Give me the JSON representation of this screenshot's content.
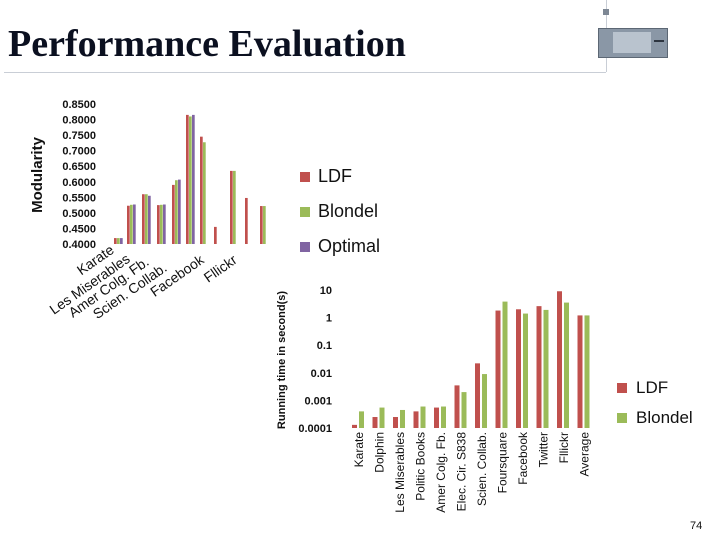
{
  "slide": {
    "title": "Performance Evaluation",
    "page_number": "74",
    "logo_icon": "optimal-network-science-logo"
  },
  "colors": {
    "LDF": "#c0504d",
    "Blondel": "#9bbb59",
    "Optimal": "#8064a2"
  },
  "chart_data": [
    {
      "type": "bar",
      "ylabel": "Modularity",
      "xlabel": "",
      "ylim": [
        0.4,
        0.85
      ],
      "ytick_labels": [
        "0.8500",
        "0.8000",
        "0.7500",
        "0.7000",
        "0.6500",
        "0.6000",
        "0.5500",
        "0.5000",
        "0.4500",
        "0.4000"
      ],
      "categories": [
        "Karate",
        "Les Miserables",
        "Amer Colg. Fb.",
        "Scien. Collab.",
        "Facebook",
        "Fllickr"
      ],
      "series": [
        {
          "name": "LDF",
          "values": [
            0.419,
            0.523,
            0.56,
            0.525,
            0.59,
            0.815
          ]
        },
        {
          "name": "Blondel",
          "values": [
            0.419,
            0.526,
            0.56,
            0.526,
            0.605,
            0.81
          ]
        },
        {
          "name": "Optimal",
          "values": [
            0.419,
            0.527,
            0.555,
            0.527,
            0.607,
            0.815
          ]
        }
      ],
      "extra_bars": [
        {
          "x_after": "Fllickr",
          "values": [
            0.745,
            0.727
          ]
        },
        {
          "x_after": "Fllickr",
          "values": [
            0.455
          ]
        },
        {
          "x_after": "Fllickr",
          "values": [
            0.635,
            0.635
          ]
        },
        {
          "x_after": "Fllickr",
          "values": [
            0.548
          ]
        },
        {
          "x_after": "Fllickr",
          "values": [
            0.522,
            0.522
          ]
        }
      ],
      "legend": [
        "LDF",
        "Blondel",
        "Optimal"
      ],
      "legend_position": "right",
      "grid": false
    },
    {
      "type": "bar",
      "log_scale": true,
      "ylabel": "Running time in second(s)",
      "xlabel": "",
      "ylim": [
        0.0001,
        10
      ],
      "ytick_labels": [
        "10",
        "1",
        "0.1",
        "0.01",
        "0.001",
        "0.0001"
      ],
      "categories": [
        "Karate",
        "Dolphin",
        "Les Miserables",
        "Politic Books",
        "Amer Colg. Fb.",
        "Elec. Cir. S838",
        "Scien. Collab.",
        "Foursquare",
        "Facebook",
        "Twitter",
        "Fllickr",
        "Average"
      ],
      "series": [
        {
          "name": "LDF",
          "values": [
            0.00013,
            0.00025,
            0.00025,
            0.0004,
            0.00055,
            0.0035,
            0.022,
            1.8,
            2.0,
            2.6,
            9.0,
            1.2
          ]
        },
        {
          "name": "Blondel",
          "values": [
            0.0004,
            0.00055,
            0.00045,
            0.0006,
            0.0006,
            0.002,
            0.009,
            3.8,
            1.4,
            1.9,
            3.5,
            1.2
          ]
        }
      ],
      "legend": [
        "LDF",
        "Blondel"
      ],
      "legend_position": "right",
      "grid": false
    }
  ]
}
